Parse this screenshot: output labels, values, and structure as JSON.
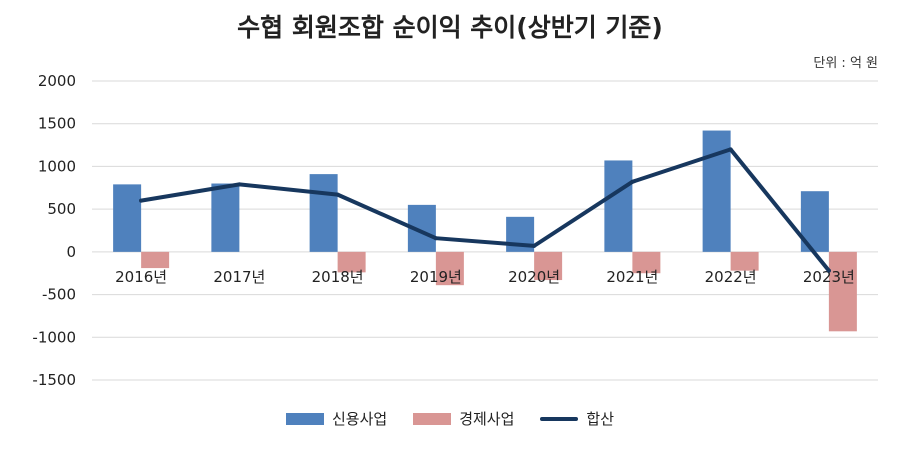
{
  "chart_data": {
    "type": "bar",
    "title": "수협 회원조합 순이익 추이(상반기 기준)",
    "unit_note": "단위 : 억 원",
    "categories": [
      "2016년",
      "2017년",
      "2018년",
      "2019년",
      "2020년",
      "2021년",
      "2022년",
      "2023년"
    ],
    "series": [
      {
        "name": "신용사업",
        "kind": "bar",
        "color": "#4f81bd",
        "values": [
          790,
          800,
          910,
          550,
          410,
          1070,
          1420,
          710
        ]
      },
      {
        "name": "경제사업",
        "kind": "bar",
        "color": "#d99694",
        "values": [
          -190,
          0,
          -240,
          -390,
          -330,
          -250,
          -220,
          -930
        ]
      },
      {
        "name": "합산",
        "kind": "line",
        "color": "#17375e",
        "values": [
          600,
          790,
          670,
          160,
          70,
          820,
          1200,
          -220
        ]
      }
    ],
    "ylim": [
      -1500,
      2000
    ],
    "yticks": [
      "2000",
      "1500",
      "1000",
      "500",
      "0",
      "-500",
      "-1000",
      "-1500"
    ],
    "grid": true,
    "legend_position": "bottom"
  }
}
